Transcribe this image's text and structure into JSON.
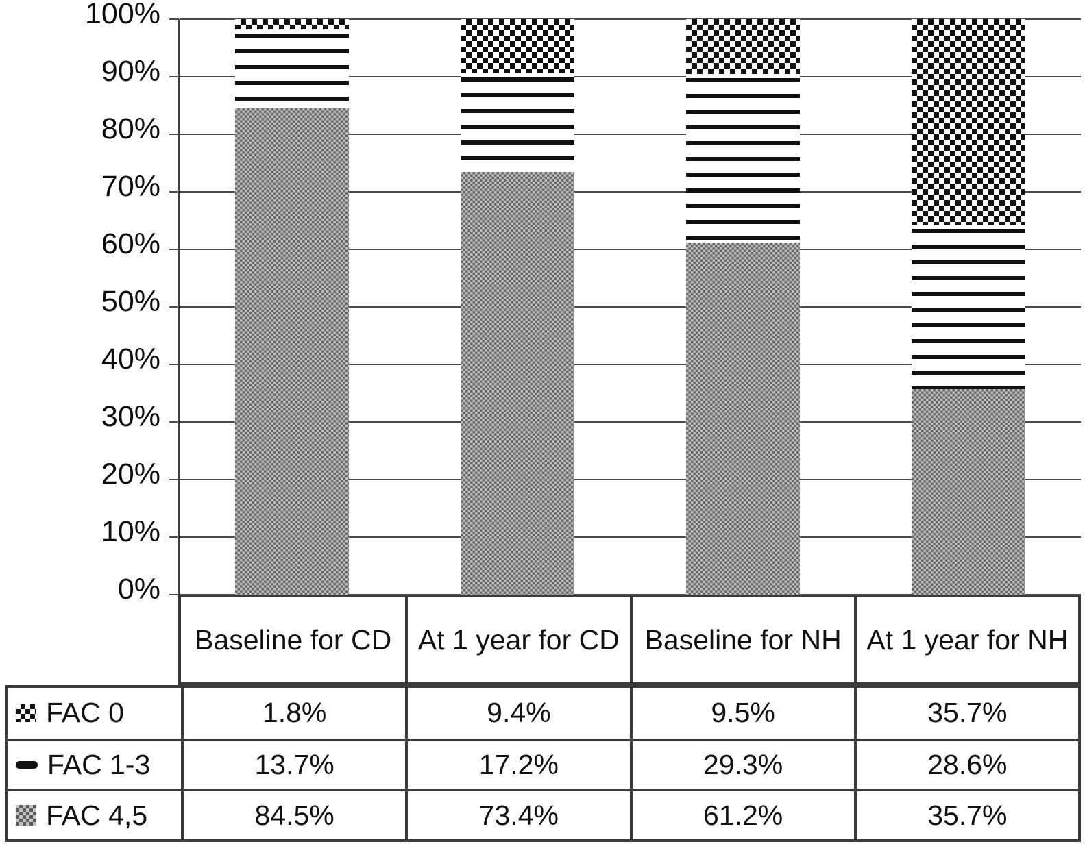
{
  "chart_data": {
    "type": "bar",
    "subtype": "stacked-100-percent-column",
    "title": "",
    "xlabel": "",
    "ylabel": "",
    "ylim": [
      0,
      100
    ],
    "grid": true,
    "legend_position": "left-column-of-data-table",
    "y_tick_labels": [
      "100%",
      "90%",
      "80%",
      "70%",
      "60%",
      "50%",
      "40%",
      "30%",
      "20%",
      "10%",
      "0%"
    ],
    "categories": [
      "Baseline for CD",
      "At 1 year for CD",
      "Baseline for NH",
      "At 1 year for NH"
    ],
    "series": [
      {
        "name": "FAC 0",
        "pattern": "black-checkerboard",
        "values": [
          1.8,
          9.4,
          9.5,
          35.7
        ]
      },
      {
        "name": "FAC 1-3",
        "pattern": "black-horizontal-lines",
        "values": [
          13.7,
          17.2,
          29.3,
          28.6
        ]
      },
      {
        "name": "FAC 4,5",
        "pattern": "gray-checkerboard",
        "values": [
          84.5,
          73.4,
          61.2,
          35.7
        ]
      }
    ],
    "stack_order_bottom_to_top": [
      "FAC 4,5",
      "FAC 1-3",
      "FAC 0"
    ],
    "data_table_display": {
      "FAC 0": [
        "1.8%",
        "9.4%",
        "9.5%",
        "35.7%"
      ],
      "FAC 1-3": [
        "13.7%",
        "17.2%",
        "29.3%",
        "28.6%"
      ],
      "FAC 4,5": [
        "84.5%",
        "73.4%",
        "61.2%",
        "35.7%"
      ]
    },
    "colors": {
      "pattern_black": "#121212",
      "pattern_gray_dark": "#696969",
      "pattern_gray_light": "#bdbdbd",
      "grid_line": "#4a4a4a",
      "table_border": "#3b3b3b",
      "background": "#ffffff"
    }
  }
}
